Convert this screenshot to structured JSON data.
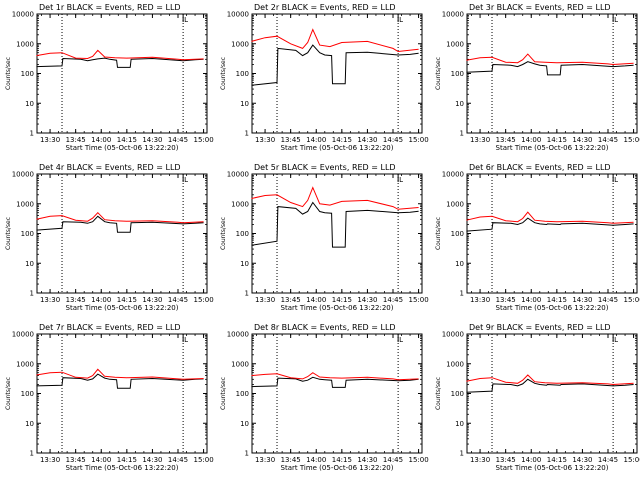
{
  "colors": {
    "events": "#000000",
    "lld": "#ff0000",
    "frame": "#000000",
    "marker": "#000000"
  },
  "chart_data": [
    {
      "type": "line",
      "title": "Det 1r BLACK = Events, RED = LLD",
      "xlabel": "Start Time (05-Oct-06 13:22:20)",
      "ylabel": "Counts/sec",
      "yscale": "log",
      "ylim": [
        1,
        10000
      ],
      "xlim": [
        "13:22:20",
        "15:02:00"
      ],
      "xtick_labels": [
        "13:30",
        "13:45",
        "14:00",
        "14:15",
        "14:30",
        "14:45",
        "15:00"
      ],
      "ytick_labels": [
        "1",
        "10",
        "100",
        "1000",
        "10000"
      ],
      "vlines_dotted": [
        "13:37:00",
        "14:48:00"
      ],
      "vline_solid": "14:48:00",
      "marker_label": "L",
      "series": [
        {
          "name": "Events",
          "color": "#000000",
          "x": [
            "13:22",
            "13:37",
            "13:37:30",
            "13:48",
            "13:52",
            "13:55",
            "13:58",
            "14:02",
            "14:05",
            "14:09",
            "14:09:30",
            "14:17",
            "14:17:30",
            "14:30",
            "14:48",
            "14:55",
            "15:00"
          ],
          "y": [
            170,
            180,
            320,
            300,
            270,
            290,
            310,
            330,
            300,
            280,
            160,
            160,
            300,
            320,
            270,
            290,
            300
          ]
        },
        {
          "name": "LLD",
          "color": "#ff0000",
          "x": [
            "13:22",
            "13:30",
            "13:37",
            "13:45",
            "13:52",
            "13:55",
            "13:58",
            "14:02",
            "14:08",
            "14:15",
            "14:30",
            "14:45",
            "14:48",
            "15:00"
          ],
          "y": [
            400,
            480,
            500,
            330,
            320,
            380,
            600,
            360,
            340,
            330,
            350,
            300,
            290,
            310
          ]
        }
      ]
    },
    {
      "type": "line",
      "title": "Det 2r BLACK = Events, RED = LLD",
      "xlabel": "Start Time (05-Oct-06 13:22:20)",
      "ylabel": "Counts/sec",
      "yscale": "log",
      "ylim": [
        1,
        10000
      ],
      "xlim": [
        "13:22:20",
        "15:02:00"
      ],
      "xtick_labels": [
        "13:30",
        "13:45",
        "14:00",
        "14:15",
        "14:30",
        "14:45",
        "15:00"
      ],
      "ytick_labels": [
        "1",
        "10",
        "100",
        "1000",
        "10000"
      ],
      "vlines_dotted": [
        "13:37:00",
        "14:48:00"
      ],
      "vline_solid": "14:48:00",
      "marker_label": "L",
      "series": [
        {
          "name": "Events",
          "color": "#000000",
          "x": [
            "13:22",
            "13:37",
            "13:37:30",
            "13:48",
            "13:52",
            "13:55",
            "13:58",
            "14:02",
            "14:05",
            "14:09",
            "14:09:30",
            "14:17",
            "14:17:30",
            "14:30",
            "14:48",
            "14:55",
            "15:00"
          ],
          "y": [
            40,
            50,
            700,
            600,
            400,
            500,
            900,
            500,
            420,
            400,
            45,
            45,
            500,
            520,
            420,
            440,
            480
          ]
        },
        {
          "name": "LLD",
          "color": "#ff0000",
          "x": [
            "13:22",
            "13:30",
            "13:37",
            "13:45",
            "13:52",
            "13:55",
            "13:58",
            "14:02",
            "14:08",
            "14:15",
            "14:30",
            "14:45",
            "14:48",
            "15:00"
          ],
          "y": [
            1200,
            1600,
            1800,
            1000,
            700,
            1100,
            3000,
            900,
            800,
            1100,
            1200,
            700,
            550,
            650
          ]
        }
      ]
    },
    {
      "type": "line",
      "title": "Det 3r BLACK = Events, RED = LLD",
      "xlabel": "Start Time (05-Oct-06 13:22:20)",
      "ylabel": "Counts/sec",
      "yscale": "log",
      "ylim": [
        1,
        10000
      ],
      "xlim": [
        "13:22:20",
        "15:02:00"
      ],
      "xtick_labels": [
        "13:30",
        "13:45",
        "14:00",
        "14:15",
        "14:30",
        "14:45",
        "15:00"
      ],
      "ytick_labels": [
        "1",
        "10",
        "100",
        "1000",
        "10000"
      ],
      "vlines_dotted": [
        "13:37:00",
        "14:48:00"
      ],
      "vline_solid": "14:48:00",
      "marker_label": "L",
      "series": [
        {
          "name": "Events",
          "color": "#000000",
          "x": [
            "13:22",
            "13:37",
            "13:37:30",
            "13:48",
            "13:52",
            "13:55",
            "13:58",
            "14:02",
            "14:05",
            "14:09",
            "14:09:30",
            "14:17",
            "14:17:30",
            "14:30",
            "14:48",
            "14:55",
            "15:00"
          ],
          "y": [
            110,
            120,
            200,
            190,
            170,
            200,
            250,
            210,
            190,
            180,
            90,
            90,
            190,
            200,
            170,
            180,
            190
          ]
        },
        {
          "name": "LLD",
          "color": "#ff0000",
          "x": [
            "13:22",
            "13:30",
            "13:37",
            "13:45",
            "13:52",
            "13:55",
            "13:58",
            "14:02",
            "14:08",
            "14:15",
            "14:30",
            "14:45",
            "14:48",
            "15:00"
          ],
          "y": [
            280,
            340,
            350,
            240,
            230,
            290,
            450,
            250,
            240,
            230,
            240,
            210,
            200,
            220
          ]
        }
      ]
    },
    {
      "type": "line",
      "title": "Det 4r BLACK = Events, RED = LLD",
      "xlabel": "Start Time (05-Oct-06 13:22:20)",
      "ylabel": "Counts/sec",
      "yscale": "log",
      "ylim": [
        1,
        10000
      ],
      "xlim": [
        "13:22:20",
        "15:02:00"
      ],
      "xtick_labels": [
        "13:30",
        "13:45",
        "14:00",
        "14:15",
        "14:30",
        "14:45",
        "15:00"
      ],
      "ytick_labels": [
        "1",
        "10",
        "100",
        "1000",
        "10000"
      ],
      "vlines_dotted": [
        "13:37:00",
        "14:48:00"
      ],
      "vline_solid": "14:48:00",
      "marker_label": "L",
      "series": [
        {
          "name": "Events",
          "color": "#000000",
          "x": [
            "13:22",
            "13:37",
            "13:37:30",
            "13:48",
            "13:52",
            "13:55",
            "13:58",
            "14:02",
            "14:05",
            "14:09",
            "14:09:30",
            "14:17",
            "14:17:30",
            "14:30",
            "14:48",
            "14:55",
            "15:00"
          ],
          "y": [
            130,
            150,
            250,
            240,
            220,
            250,
            380,
            250,
            230,
            220,
            110,
            110,
            230,
            240,
            210,
            220,
            230
          ]
        },
        {
          "name": "LLD",
          "color": "#ff0000",
          "x": [
            "13:22",
            "13:30",
            "13:37",
            "13:45",
            "13:52",
            "13:55",
            "13:58",
            "14:02",
            "14:08",
            "14:15",
            "14:30",
            "14:45",
            "14:48",
            "15:00"
          ],
          "y": [
            300,
            380,
            400,
            280,
            260,
            330,
            500,
            290,
            270,
            260,
            270,
            240,
            230,
            250
          ]
        }
      ]
    },
    {
      "type": "line",
      "title": "Det 5r BLACK = Events, RED = LLD",
      "xlabel": "Start Time (05-Oct-06 13:22:20)",
      "ylabel": "Counts/sec",
      "yscale": "log",
      "ylim": [
        1,
        10000
      ],
      "xlim": [
        "13:22:20",
        "15:02:00"
      ],
      "xtick_labels": [
        "13:30",
        "13:45",
        "14:00",
        "14:15",
        "14:30",
        "14:45",
        "15:00"
      ],
      "ytick_labels": [
        "1",
        "10",
        "100",
        "1000",
        "10000"
      ],
      "vlines_dotted": [
        "13:37:00",
        "14:48:00"
      ],
      "vline_solid": "14:48:00",
      "marker_label": "L",
      "series": [
        {
          "name": "Events",
          "color": "#000000",
          "x": [
            "13:22",
            "13:37",
            "13:37:30",
            "13:48",
            "13:52",
            "13:55",
            "13:58",
            "14:02",
            "14:05",
            "14:09",
            "14:09:30",
            "14:17",
            "14:17:30",
            "14:30",
            "14:48",
            "14:55",
            "15:00"
          ],
          "y": [
            40,
            55,
            800,
            700,
            450,
            550,
            1100,
            550,
            500,
            480,
            35,
            35,
            550,
            600,
            500,
            520,
            560
          ]
        },
        {
          "name": "LLD",
          "color": "#ff0000",
          "x": [
            "13:22",
            "13:30",
            "13:37",
            "13:45",
            "13:52",
            "13:55",
            "13:58",
            "14:02",
            "14:08",
            "14:15",
            "14:30",
            "14:45",
            "14:48",
            "15:00"
          ],
          "y": [
            1500,
            1900,
            2000,
            1100,
            800,
            1300,
            3500,
            1000,
            900,
            1200,
            1300,
            800,
            650,
            750
          ]
        }
      ]
    },
    {
      "type": "line",
      "title": "Det 6r BLACK = Events, RED = LLD",
      "xlabel": "Start Time (05-Oct-06 13:22:20)",
      "ylabel": "Counts/sec",
      "yscale": "log",
      "ylim": [
        1,
        10000
      ],
      "xlim": [
        "13:22:20",
        "15:02:00"
      ],
      "xtick_labels": [
        "13:30",
        "13:45",
        "14:00",
        "14:15",
        "14:30",
        "14:45",
        "15:00"
      ],
      "ytick_labels": [
        "1",
        "10",
        "100",
        "1000",
        "10000"
      ],
      "vlines_dotted": [
        "13:37:00",
        "14:48:00"
      ],
      "vline_solid": "14:48:00",
      "marker_label": "L",
      "series": [
        {
          "name": "Events",
          "color": "#000000",
          "x": [
            "13:22",
            "13:37",
            "13:37:30",
            "13:48",
            "13:52",
            "13:55",
            "13:58",
            "14:02",
            "14:05",
            "14:09",
            "14:09:30",
            "14:17",
            "14:17:30",
            "14:30",
            "14:48",
            "14:55",
            "15:00"
          ],
          "y": [
            120,
            140,
            230,
            220,
            200,
            230,
            330,
            230,
            210,
            200,
            210,
            200,
            210,
            220,
            190,
            200,
            210
          ]
        },
        {
          "name": "LLD",
          "color": "#ff0000",
          "x": [
            "13:22",
            "13:30",
            "13:37",
            "13:45",
            "13:52",
            "13:55",
            "13:58",
            "14:02",
            "14:08",
            "14:15",
            "14:30",
            "14:45",
            "14:48",
            "15:00"
          ],
          "y": [
            280,
            360,
            380,
            270,
            250,
            320,
            520,
            280,
            260,
            250,
            260,
            230,
            220,
            240
          ]
        }
      ]
    },
    {
      "type": "line",
      "title": "Det 7r BLACK = Events, RED = LLD",
      "xlabel": "Start Time (05-Oct-06 13:22:20)",
      "ylabel": "Counts/sec",
      "yscale": "log",
      "ylim": [
        1,
        10000
      ],
      "xlim": [
        "13:22:20",
        "15:02:00"
      ],
      "xtick_labels": [
        "13:30",
        "13:45",
        "14:00",
        "14:15",
        "14:30",
        "14:45",
        "15:00"
      ],
      "ytick_labels": [
        "1",
        "10",
        "100",
        "1000",
        "10000"
      ],
      "vlines_dotted": [
        "13:37:00",
        "14:48:00"
      ],
      "vline_solid": "14:48:00",
      "marker_label": "L",
      "series": [
        {
          "name": "Events",
          "color": "#000000",
          "x": [
            "13:22",
            "13:37",
            "13:37:30",
            "13:48",
            "13:52",
            "13:55",
            "13:58",
            "14:02",
            "14:05",
            "14:09",
            "14:09:30",
            "14:17",
            "14:17:30",
            "14:30",
            "14:48",
            "14:55",
            "15:00"
          ],
          "y": [
            180,
            190,
            340,
            320,
            280,
            310,
            450,
            330,
            300,
            290,
            150,
            150,
            300,
            320,
            280,
            300,
            310
          ]
        },
        {
          "name": "LLD",
          "color": "#ff0000",
          "x": [
            "13:22",
            "13:30",
            "13:37",
            "13:45",
            "13:52",
            "13:55",
            "13:58",
            "14:02",
            "14:08",
            "14:15",
            "14:30",
            "14:45",
            "14:48",
            "15:00"
          ],
          "y": [
            420,
            500,
            520,
            350,
            330,
            400,
            650,
            380,
            350,
            340,
            360,
            310,
            300,
            320
          ]
        }
      ]
    },
    {
      "type": "line",
      "title": "Det 8r BLACK = Events, RED = LLD",
      "xlabel": "Start Time (05-Oct-06 13:22:20)",
      "ylabel": "Counts/sec",
      "yscale": "log",
      "ylim": [
        1,
        10000
      ],
      "xlim": [
        "13:22:20",
        "15:02:00"
      ],
      "xtick_labels": [
        "13:30",
        "13:45",
        "14:00",
        "14:15",
        "14:30",
        "14:45",
        "15:00"
      ],
      "ytick_labels": [
        "1",
        "10",
        "100",
        "1000",
        "10000"
      ],
      "vlines_dotted": [
        "13:37:00",
        "14:48:00"
      ],
      "vline_solid": "14:48:00",
      "marker_label": "L",
      "series": [
        {
          "name": "Events",
          "color": "#000000",
          "x": [
            "13:22",
            "13:37",
            "13:37:30",
            "13:48",
            "13:52",
            "13:55",
            "13:58",
            "14:02",
            "14:05",
            "14:09",
            "14:09:30",
            "14:17",
            "14:17:30",
            "14:30",
            "14:48",
            "14:55",
            "15:00"
          ],
          "y": [
            170,
            180,
            330,
            310,
            260,
            280,
            350,
            300,
            290,
            280,
            160,
            160,
            280,
            300,
            270,
            280,
            300
          ]
        },
        {
          "name": "LLD",
          "color": "#ff0000",
          "x": [
            "13:22",
            "13:30",
            "13:37",
            "13:45",
            "13:52",
            "13:55",
            "13:58",
            "14:02",
            "14:08",
            "14:15",
            "14:30",
            "14:45",
            "14:48",
            "15:00"
          ],
          "y": [
            400,
            440,
            460,
            340,
            310,
            370,
            500,
            360,
            340,
            330,
            350,
            310,
            290,
            310
          ]
        }
      ]
    },
    {
      "type": "line",
      "title": "Det 9r BLACK = Events, RED = LLD",
      "xlabel": "Start Time (05-Oct-06 13:22:20)",
      "ylabel": "Counts/sec",
      "yscale": "log",
      "ylim": [
        1,
        10000
      ],
      "xlim": [
        "13:22:20",
        "15:02:00"
      ],
      "xtick_labels": [
        "13:30",
        "13:45",
        "14:00",
        "14:15",
        "14:30",
        "14:45",
        "15:00"
      ],
      "ytick_labels": [
        "1",
        "10",
        "100",
        "1000",
        "10000"
      ],
      "vlines_dotted": [
        "13:37:00",
        "14:48:00"
      ],
      "vline_solid": "14:48:00",
      "marker_label": "L",
      "series": [
        {
          "name": "Events",
          "color": "#000000",
          "x": [
            "13:22",
            "13:37",
            "13:37:30",
            "13:48",
            "13:52",
            "13:55",
            "13:58",
            "14:02",
            "14:05",
            "14:09",
            "14:09:30",
            "14:17",
            "14:17:30",
            "14:30",
            "14:48",
            "14:55",
            "15:00"
          ],
          "y": [
            110,
            120,
            210,
            200,
            180,
            210,
            300,
            220,
            200,
            190,
            200,
            190,
            200,
            210,
            180,
            190,
            200
          ]
        },
        {
          "name": "LLD",
          "color": "#ff0000",
          "x": [
            "13:22",
            "13:30",
            "13:37",
            "13:45",
            "13:52",
            "13:55",
            "13:58",
            "14:02",
            "14:08",
            "14:15",
            "14:30",
            "14:45",
            "14:48",
            "15:00"
          ],
          "y": [
            260,
            320,
            340,
            240,
            220,
            280,
            420,
            250,
            230,
            220,
            230,
            210,
            200,
            220
          ]
        }
      ]
    }
  ]
}
